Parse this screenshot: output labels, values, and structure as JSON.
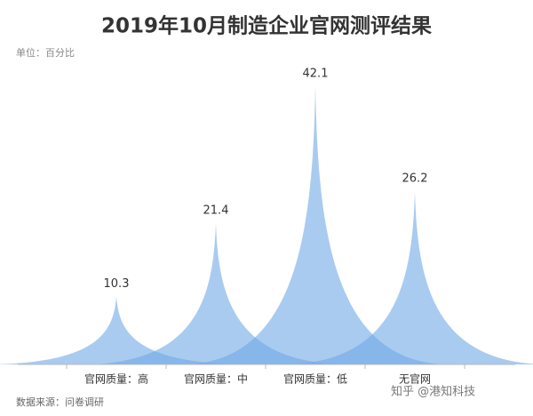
{
  "chart_data": {
    "type": "peak",
    "title": "2019年10月制造企业官网测评结果",
    "subtitle": "单位：百分比",
    "source": "数据来源：问卷调研",
    "watermark": "知乎 @港知科技",
    "categories": [
      "官网质量：高",
      "官网质量：中",
      "官网质量：低",
      "无官网"
    ],
    "values": [
      10.3,
      21.4,
      42.1,
      26.2
    ],
    "color": "#6fa8e6"
  }
}
